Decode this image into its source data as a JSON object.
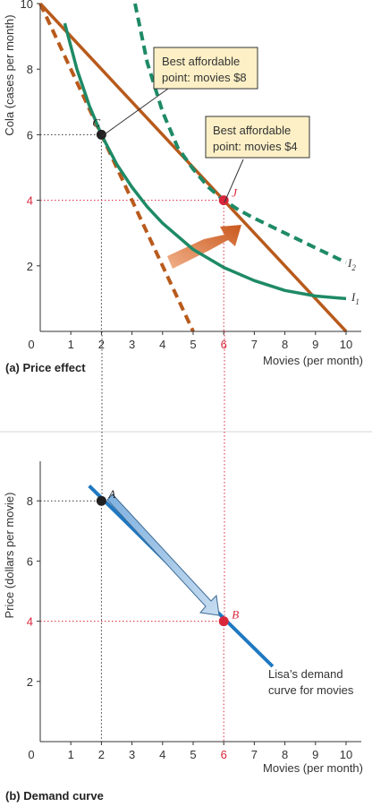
{
  "colors": {
    "budget_line": "#b85a1c",
    "indifference": "#1e8a66",
    "demand_curve": "#1f78c1",
    "point_black": "#222222",
    "point_red": "#d9263b",
    "callout_bg": "#fdf0c6",
    "arrow_orange": "#d9763a",
    "arrow_blue": "#9dc3e6"
  },
  "panels": {
    "a": {
      "caption": "(a)  Price effect",
      "callout_c": [
        "Best affordable",
        "point: movies $8"
      ],
      "callout_j": [
        "Best affordable",
        "point: movies $4"
      ]
    },
    "b": {
      "caption": "(b)  Demand curve",
      "note": [
        "Lisa’s demand",
        "curve for movies"
      ]
    }
  },
  "chart_data": [
    {
      "type": "line",
      "ylabel": "Cola (cases per month)",
      "xlabel": "Movies (per month)",
      "xlim": [
        0,
        10
      ],
      "ylim": [
        0,
        10
      ],
      "xticks": [
        "0",
        "1",
        "2",
        "3",
        "4",
        "5",
        "6",
        "7",
        "8",
        "9",
        "10"
      ],
      "yticks": [
        "2",
        "4",
        "6",
        "8",
        "10"
      ],
      "highlight_x": 6,
      "highlight_y": 4,
      "series": [
        {
          "key": "budget_old",
          "style": "dashed",
          "points": [
            [
              0,
              10
            ],
            [
              5,
              0
            ]
          ]
        },
        {
          "key": "budget_new",
          "style": "solid",
          "points": [
            [
              0,
              10
            ],
            [
              10,
              0
            ]
          ]
        },
        {
          "key": "i1",
          "name": "I",
          "sub": "1",
          "style": "solid",
          "points": [
            [
              0.8,
              9.4
            ],
            [
              1.2,
              8.0
            ],
            [
              1.6,
              6.9
            ],
            [
              2.0,
              6.0
            ],
            [
              2.5,
              5.1
            ],
            [
              3.0,
              4.4
            ],
            [
              3.5,
              3.8
            ],
            [
              4.0,
              3.3
            ],
            [
              5.0,
              2.5
            ],
            [
              6.0,
              1.95
            ],
            [
              7.0,
              1.55
            ],
            [
              8.0,
              1.25
            ],
            [
              9.0,
              1.08
            ],
            [
              10.0,
              1.0
            ]
          ]
        },
        {
          "key": "i2",
          "name": "I",
          "sub": "2",
          "style": "dashed",
          "points": [
            [
              3.1,
              10.0
            ],
            [
              3.5,
              8.2
            ],
            [
              4.0,
              6.7
            ],
            [
              4.5,
              5.6
            ],
            [
              5.0,
              4.95
            ],
            [
              5.5,
              4.4
            ],
            [
              6.0,
              4.0
            ],
            [
              6.5,
              3.7
            ],
            [
              7.0,
              3.45
            ],
            [
              8.0,
              3.0
            ],
            [
              9.0,
              2.55
            ],
            [
              10.0,
              2.1
            ]
          ]
        }
      ],
      "points": [
        {
          "label": "C",
          "x": 2,
          "y": 6
        },
        {
          "label": "J",
          "x": 6,
          "y": 4
        }
      ]
    },
    {
      "type": "line",
      "ylabel": "Price (dollars per movie)",
      "xlabel": "Movies (per month)",
      "xlim": [
        0,
        10
      ],
      "ylim": [
        0,
        9
      ],
      "xticks": [
        "0",
        "1",
        "2",
        "3",
        "4",
        "5",
        "6",
        "7",
        "8",
        "9",
        "10"
      ],
      "yticks": [
        "2",
        "4",
        "6",
        "8"
      ],
      "highlight_x": 6,
      "highlight_y": 4,
      "series": [
        {
          "key": "demand",
          "style": "solid",
          "points": [
            [
              1.6,
              8.5
            ],
            [
              7.6,
              2.5
            ]
          ]
        }
      ],
      "points": [
        {
          "label": "A",
          "x": 2,
          "y": 8
        },
        {
          "label": "B",
          "x": 6,
          "y": 4
        }
      ]
    }
  ]
}
